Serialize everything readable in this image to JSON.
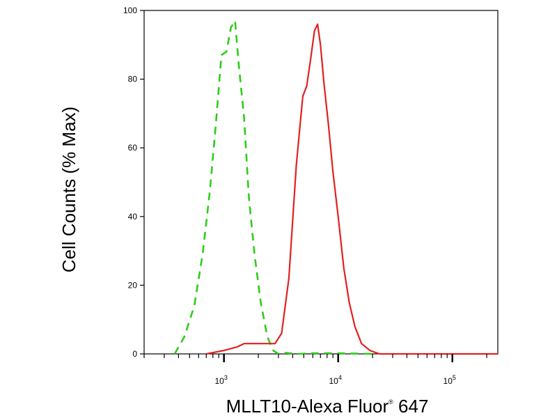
{
  "chart_data": {
    "type": "line",
    "title": "",
    "xlabel": "MLLT10-Alexa Fluor",
    "xlabel_sup": "®",
    "xlabel_suffix": " 647",
    "ylabel": "Cell Counts (% Max)",
    "xscale": "log",
    "xlim": [
      200,
      250000
    ],
    "ylim": [
      0,
      100
    ],
    "yticks": [
      0,
      20,
      40,
      60,
      80,
      100
    ],
    "xticks": [
      {
        "value": 1000,
        "base": "10",
        "exp": "3"
      },
      {
        "value": 10000,
        "base": "10",
        "exp": "4"
      },
      {
        "value": 100000,
        "base": "10",
        "exp": "5"
      }
    ],
    "grid": false,
    "legend": "none",
    "series": [
      {
        "color": "#2ecc1a",
        "style": "dashed",
        "x": [
          370,
          450,
          550,
          650,
          750,
          850,
          950,
          1050,
          1150,
          1250,
          1350,
          1500,
          1650,
          1850,
          2100,
          2400,
          2700,
          3000,
          3500,
          4500,
          6000,
          10000,
          20000
        ],
        "y": [
          0,
          5,
          14,
          29,
          47,
          67,
          87,
          88,
          95,
          97,
          84,
          69,
          46,
          29,
          15,
          5,
          1,
          0,
          0.3,
          0,
          0.2,
          0.2,
          0
        ]
      },
      {
        "color": "#e02020",
        "style": "solid",
        "x": [
          700,
          1000,
          1300,
          1500,
          1700,
          2000,
          2400,
          2800,
          3200,
          3700,
          4300,
          4900,
          5300,
          5700,
          6200,
          6600,
          7000,
          7500,
          8200,
          9000,
          10000,
          11200,
          12500,
          14000,
          16000,
          19000,
          23000,
          30000,
          50000,
          100000,
          250000
        ],
        "y": [
          0,
          1,
          2,
          3,
          3,
          3,
          3,
          3,
          6,
          22,
          55,
          75,
          78,
          85,
          94,
          96,
          90,
          79,
          67,
          53,
          40,
          25,
          15,
          8,
          3,
          1,
          0,
          0,
          0,
          0,
          0
        ]
      }
    ]
  }
}
